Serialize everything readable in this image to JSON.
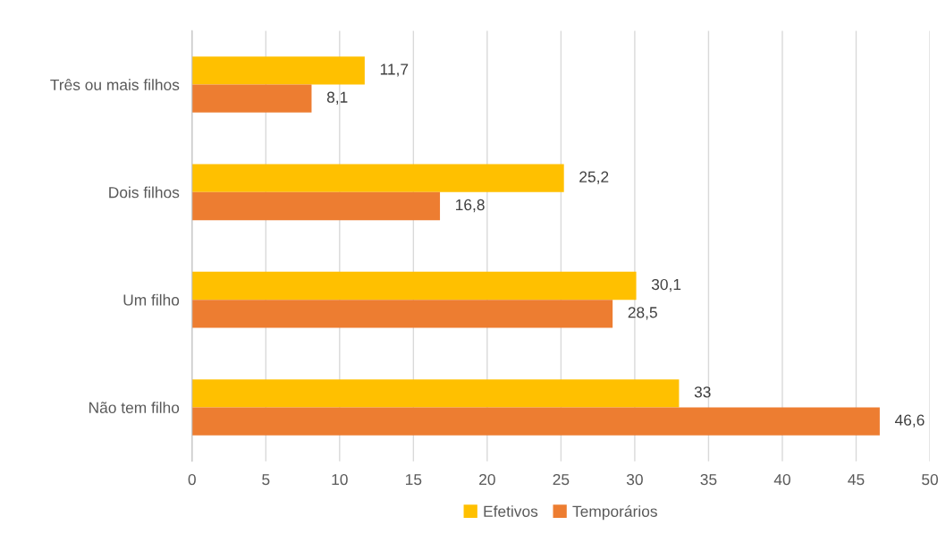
{
  "chart_data": {
    "type": "bar",
    "orientation": "horizontal",
    "categories": [
      "Três ou mais filhos",
      "Dois filhos",
      "Um filho",
      "Não tem filho"
    ],
    "series": [
      {
        "name": "Efetivos",
        "color": "#ffc000",
        "values": [
          11.7,
          25.2,
          30.1,
          33
        ],
        "value_labels": [
          "11,7",
          "25,2",
          "30,1",
          "33"
        ]
      },
      {
        "name": "Temporários",
        "color": "#ed7d31",
        "values": [
          8.1,
          16.8,
          28.5,
          46.6
        ],
        "value_labels": [
          "8,1",
          "16,8",
          "28,5",
          "46,6"
        ]
      }
    ],
    "xlim": [
      0,
      50
    ],
    "xticks": [
      0,
      5,
      10,
      15,
      20,
      25,
      30,
      35,
      40,
      45,
      50
    ],
    "grid": "x",
    "legend": "bottom"
  }
}
